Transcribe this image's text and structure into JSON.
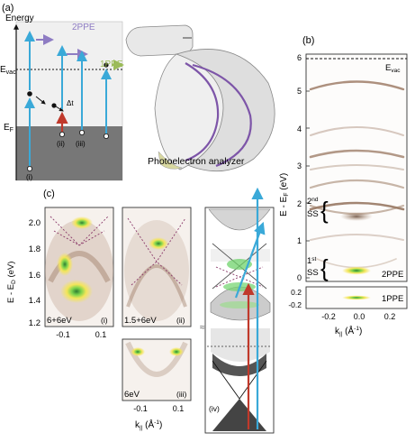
{
  "panel_a": {
    "label": "(a)",
    "energy_label": "Energy",
    "evac_label": "E",
    "evac_sub": "vac",
    "ef_label": "E",
    "ef_sub": "F",
    "twoppe": "2PPE",
    "oneppe": "1PPE",
    "delta_t": "Δt",
    "path_labels": [
      "(i)",
      "(ii)",
      "(iii)"
    ],
    "analyzer_caption": "Photoelectron analyzer",
    "colors": {
      "probe": "#3aa9d8",
      "pump": "#c0392b",
      "twoppe_arrow": "#8e7cc3",
      "oneppe_arrow": "#9bbb59"
    }
  },
  "panel_b": {
    "label": "(b)",
    "ylabel": "E - E",
    "ylabel_sub": "F",
    "ylabel_unit": " (eV)",
    "y_ticks": [
      "0",
      "1",
      "2",
      "3",
      "4",
      "5",
      "6"
    ],
    "y_ticks_inset": [
      "0.2",
      "-0.2"
    ],
    "x_ticks": [
      "-0.2",
      "0.0",
      "0.2"
    ],
    "xlabel": "k",
    "xlabel_sub": "||",
    "xlabel_unit": " (Å",
    "xlabel_sup": "-1",
    "xlabel_end": ")",
    "evac": "E",
    "evac_sub": "vac",
    "ss2_a": "2",
    "ss2_sup": "nd",
    "ss2_b": "SS",
    "ss1_a": "1",
    "ss1_sup": "st",
    "ss1_b": "SS",
    "tag_2ppe": "2PPE",
    "tag_1ppe": "1PPE"
  },
  "panel_c": {
    "label": "(c)",
    "ylabel": "E - E",
    "ylabel_sub": "D",
    "ylabel_unit": " (eV)",
    "y_ticks": [
      "2.0",
      "1.8",
      "1.6",
      "1.4",
      "1.2"
    ],
    "x_ticks": [
      "-0.1",
      "0.1"
    ],
    "xlabel": "k",
    "xlabel_sub": "||",
    "xlabel_unit": " (Å",
    "xlabel_sup": "-1",
    "xlabel_end": ")",
    "sub_i": {
      "tag": "6+6eV",
      "num": "(i)"
    },
    "sub_ii": {
      "tag": "1.5+6eV",
      "num": "(ii)"
    },
    "sub_iii": {
      "tag": "6eV",
      "num": "(iii)"
    },
    "sub_iv": "(iv)"
  }
}
